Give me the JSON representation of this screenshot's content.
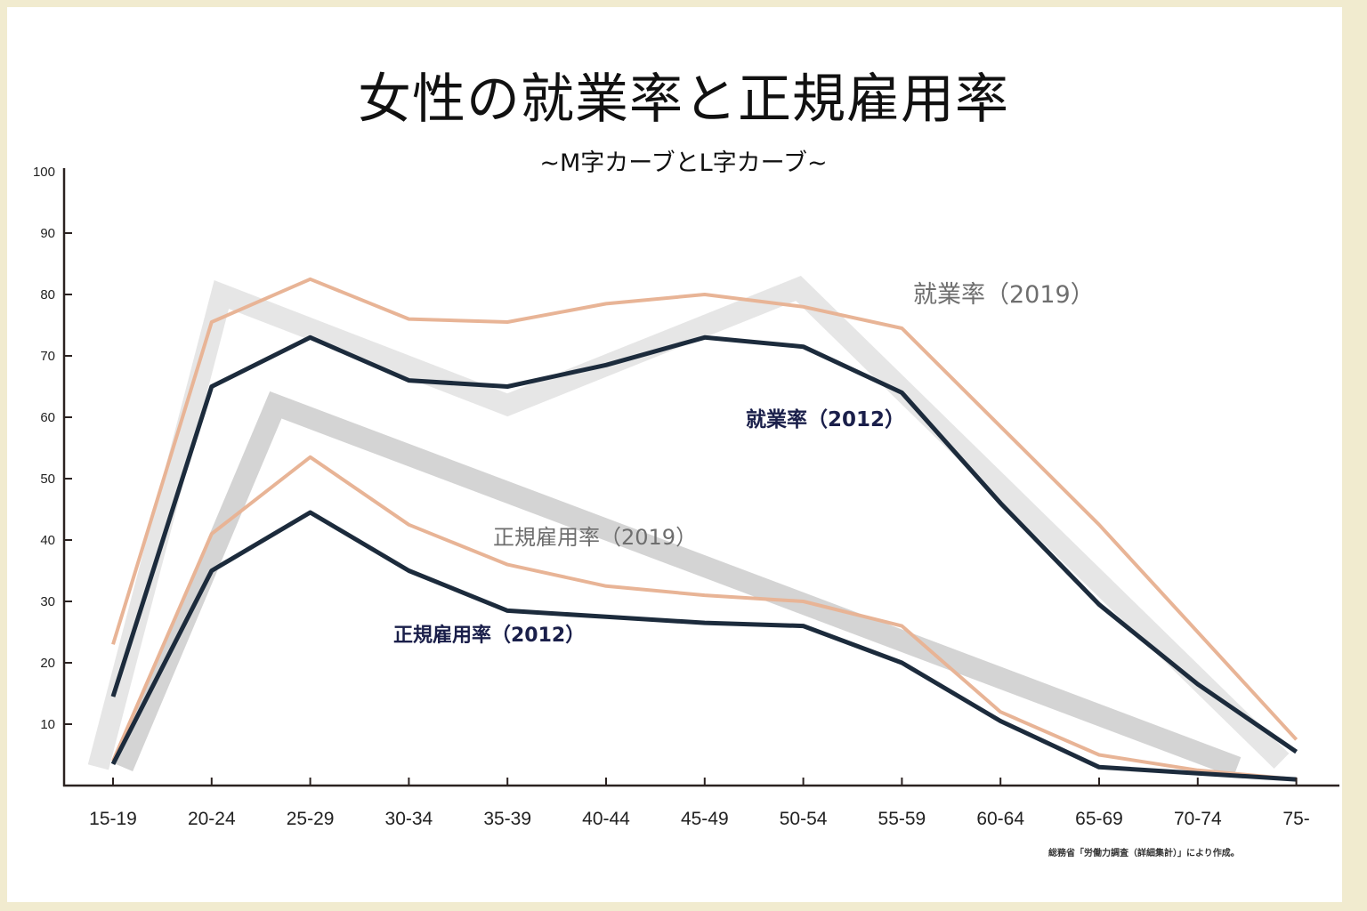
{
  "title": "女性の就業率と正規雇用率",
  "subtitle": "~M字カーブとL字カーブ~",
  "source_note": "総務省「労働力調査（詳細集計）」により作成。",
  "colors": {
    "frame": "#f1ebcf",
    "series_2019": "#e8b496",
    "series_2012": "#1c2b3c",
    "trend_m": "#e6e6e6",
    "trend_l": "#d4d4d4",
    "label_2019": "#6e6e6e",
    "label_2012": "#1a1f4a"
  },
  "chart_data": {
    "type": "line",
    "title": "女性の就業率と正規雇用率",
    "subtitle": "~M字カーブとL字カーブ~",
    "xlabel": "",
    "ylabel": "",
    "ylim": [
      0,
      100
    ],
    "yticks": [
      10,
      20,
      30,
      40,
      50,
      60,
      70,
      80,
      90,
      100
    ],
    "grid": false,
    "legend": "inline labels",
    "categories": [
      "15-19",
      "20-24",
      "25-29",
      "30-34",
      "35-39",
      "40-44",
      "45-49",
      "50-54",
      "55-59",
      "60-64",
      "65-69",
      "70-74",
      "75-"
    ],
    "series": [
      {
        "name": "就業率（2019）",
        "key": "emp2019",
        "values": [
          23,
          75.5,
          82.5,
          76,
          75.5,
          78.5,
          80,
          78,
          74.5,
          58.5,
          42.5,
          25,
          7.5
        ]
      },
      {
        "name": "就業率（2012）",
        "key": "emp2012",
        "values": [
          14.5,
          65,
          73,
          66,
          65,
          68.5,
          73,
          71.5,
          64,
          46,
          29.5,
          16.5,
          5.5
        ]
      },
      {
        "name": "正規雇用率（2019）",
        "key": "reg2019",
        "values": [
          4,
          41,
          53.5,
          42.5,
          36,
          32.5,
          31,
          30,
          26,
          12,
          5,
          2.5,
          1
        ]
      },
      {
        "name": "正規雇用率（2012）",
        "key": "reg2012",
        "values": [
          3.5,
          35,
          44.5,
          35,
          28.5,
          27.5,
          26.5,
          26,
          20,
          10.5,
          3,
          2,
          1
        ]
      }
    ],
    "trend_shapes": [
      {
        "name": "M字カーブ",
        "points": [
          [
            -0.15,
            3
          ],
          [
            1.1,
            80
          ],
          [
            4.0,
            62
          ],
          [
            6.95,
            81
          ],
          [
            11.85,
            4
          ]
        ]
      },
      {
        "name": "L字カーブ",
        "points": [
          [
            0.1,
            3
          ],
          [
            1.65,
            62
          ],
          [
            11.4,
            3
          ]
        ]
      }
    ],
    "annotations": [
      {
        "text": "就業率（2019）",
        "series": "emp2019"
      },
      {
        "text": "就業率（2012）",
        "series": "emp2012"
      },
      {
        "text": "正規雇用率（2019）",
        "series": "reg2019"
      },
      {
        "text": "正規雇用率（2012）",
        "series": "reg2012"
      }
    ]
  }
}
